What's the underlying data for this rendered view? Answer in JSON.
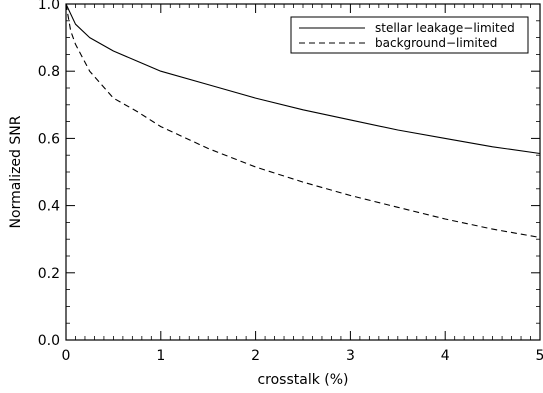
{
  "chart_data": {
    "type": "line",
    "xlabel": "crosstalk (%)",
    "ylabel": "Normalized SNR",
    "xlim": [
      0,
      5
    ],
    "ylim": [
      0,
      1
    ],
    "x_ticks": [
      0,
      1,
      2,
      3,
      4,
      5
    ],
    "y_ticks": [
      0.0,
      0.2,
      0.4,
      0.6,
      0.8,
      1.0
    ],
    "x_tick_labels": [
      "0",
      "1",
      "2",
      "3",
      "4",
      "5"
    ],
    "y_tick_labels": [
      "0.0",
      "0.2",
      "0.4",
      "0.6",
      "0.8",
      "1.0"
    ],
    "grid": false,
    "legend_position": "top-right",
    "series": [
      {
        "name": "stellar leakage−limited",
        "style": "solid",
        "color": "#000000",
        "x": [
          0,
          0.1,
          0.25,
          0.5,
          0.75,
          1,
          1.5,
          2,
          2.5,
          3,
          3.5,
          4,
          4.5,
          5
        ],
        "y": [
          1.0,
          0.94,
          0.9,
          0.86,
          0.83,
          0.8,
          0.76,
          0.72,
          0.685,
          0.655,
          0.625,
          0.6,
          0.575,
          0.555
        ]
      },
      {
        "name": "background−limited",
        "style": "dashed",
        "color": "#000000",
        "x": [
          0,
          0.05,
          0.1,
          0.25,
          0.5,
          0.75,
          1,
          1.5,
          2,
          2.5,
          3,
          3.5,
          4,
          4.5,
          5
        ],
        "y": [
          1.0,
          0.92,
          0.88,
          0.8,
          0.72,
          0.68,
          0.635,
          0.57,
          0.515,
          0.47,
          0.43,
          0.395,
          0.36,
          0.33,
          0.305
        ]
      }
    ]
  }
}
